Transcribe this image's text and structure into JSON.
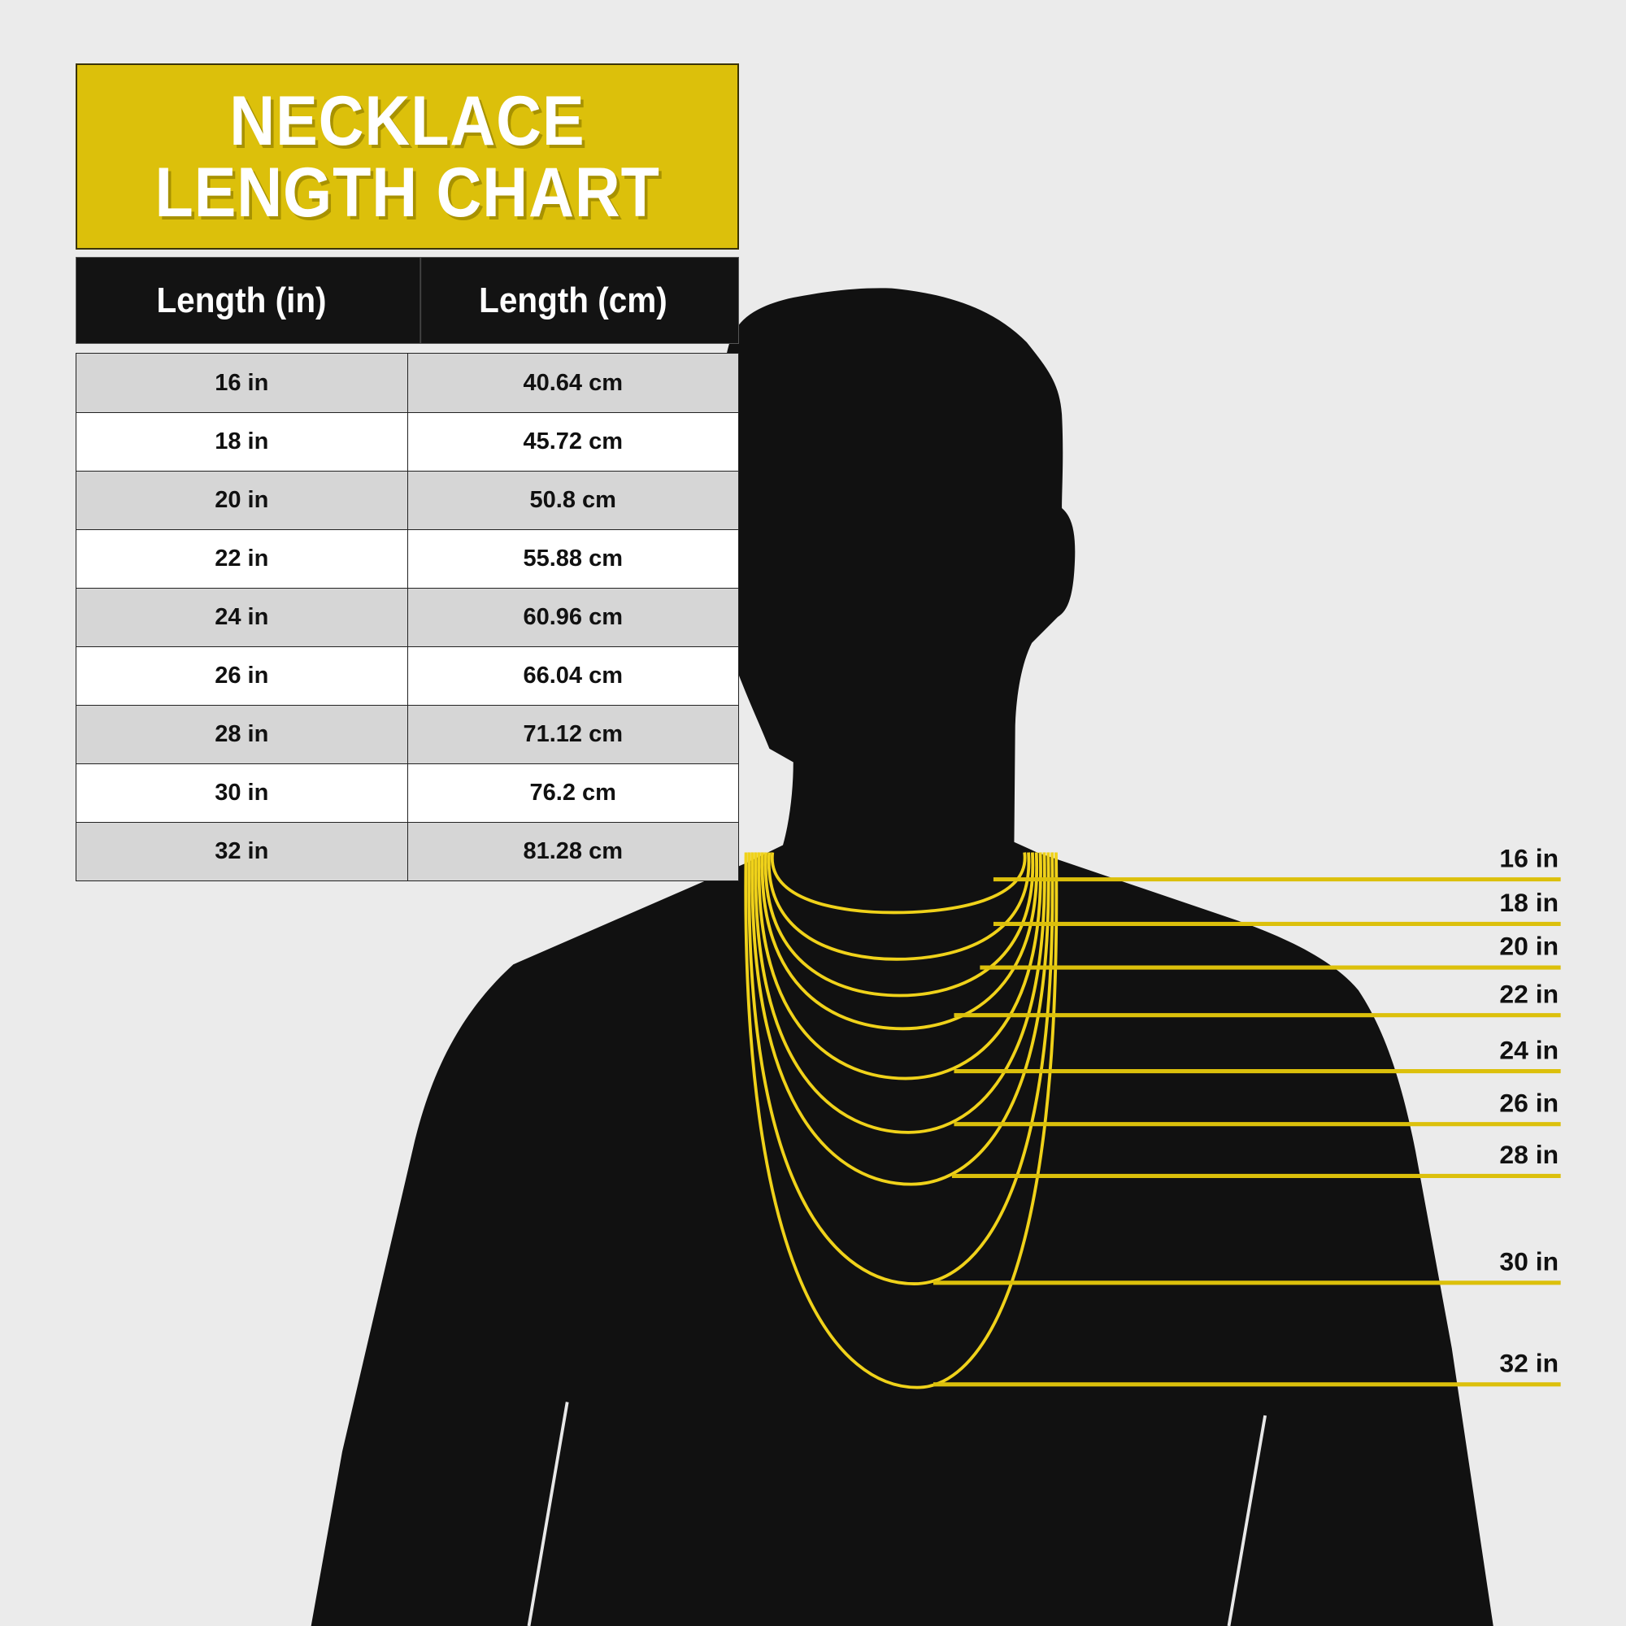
{
  "title": {
    "line1": "NECKLACE",
    "line2": "LENGTH CHART"
  },
  "colors": {
    "accent": "#dcc00b",
    "silhouette": "#111111",
    "background": "#ebebeb",
    "chain": "#f0d21a"
  },
  "chart_data": {
    "type": "table",
    "columns": [
      "Length (in)",
      "Length (cm)"
    ],
    "rows": [
      [
        "16 in",
        "40.64 cm"
      ],
      [
        "18 in",
        "45.72 cm"
      ],
      [
        "20 in",
        "50.8 cm"
      ],
      [
        "22 in",
        "55.88 cm"
      ],
      [
        "24 in",
        "60.96 cm"
      ],
      [
        "26 in",
        "66.04 cm"
      ],
      [
        "28 in",
        "71.12 cm"
      ],
      [
        "30 in",
        "76.2 cm"
      ],
      [
        "32 in",
        "81.28 cm"
      ]
    ],
    "necklace_lengths_in": [
      16,
      18,
      20,
      22,
      24,
      26,
      28,
      30,
      32
    ],
    "markers": [
      "16 in",
      "18 in",
      "20 in",
      "22 in",
      "24 in",
      "26 in",
      "28 in",
      "30 in",
      "32 in"
    ]
  }
}
